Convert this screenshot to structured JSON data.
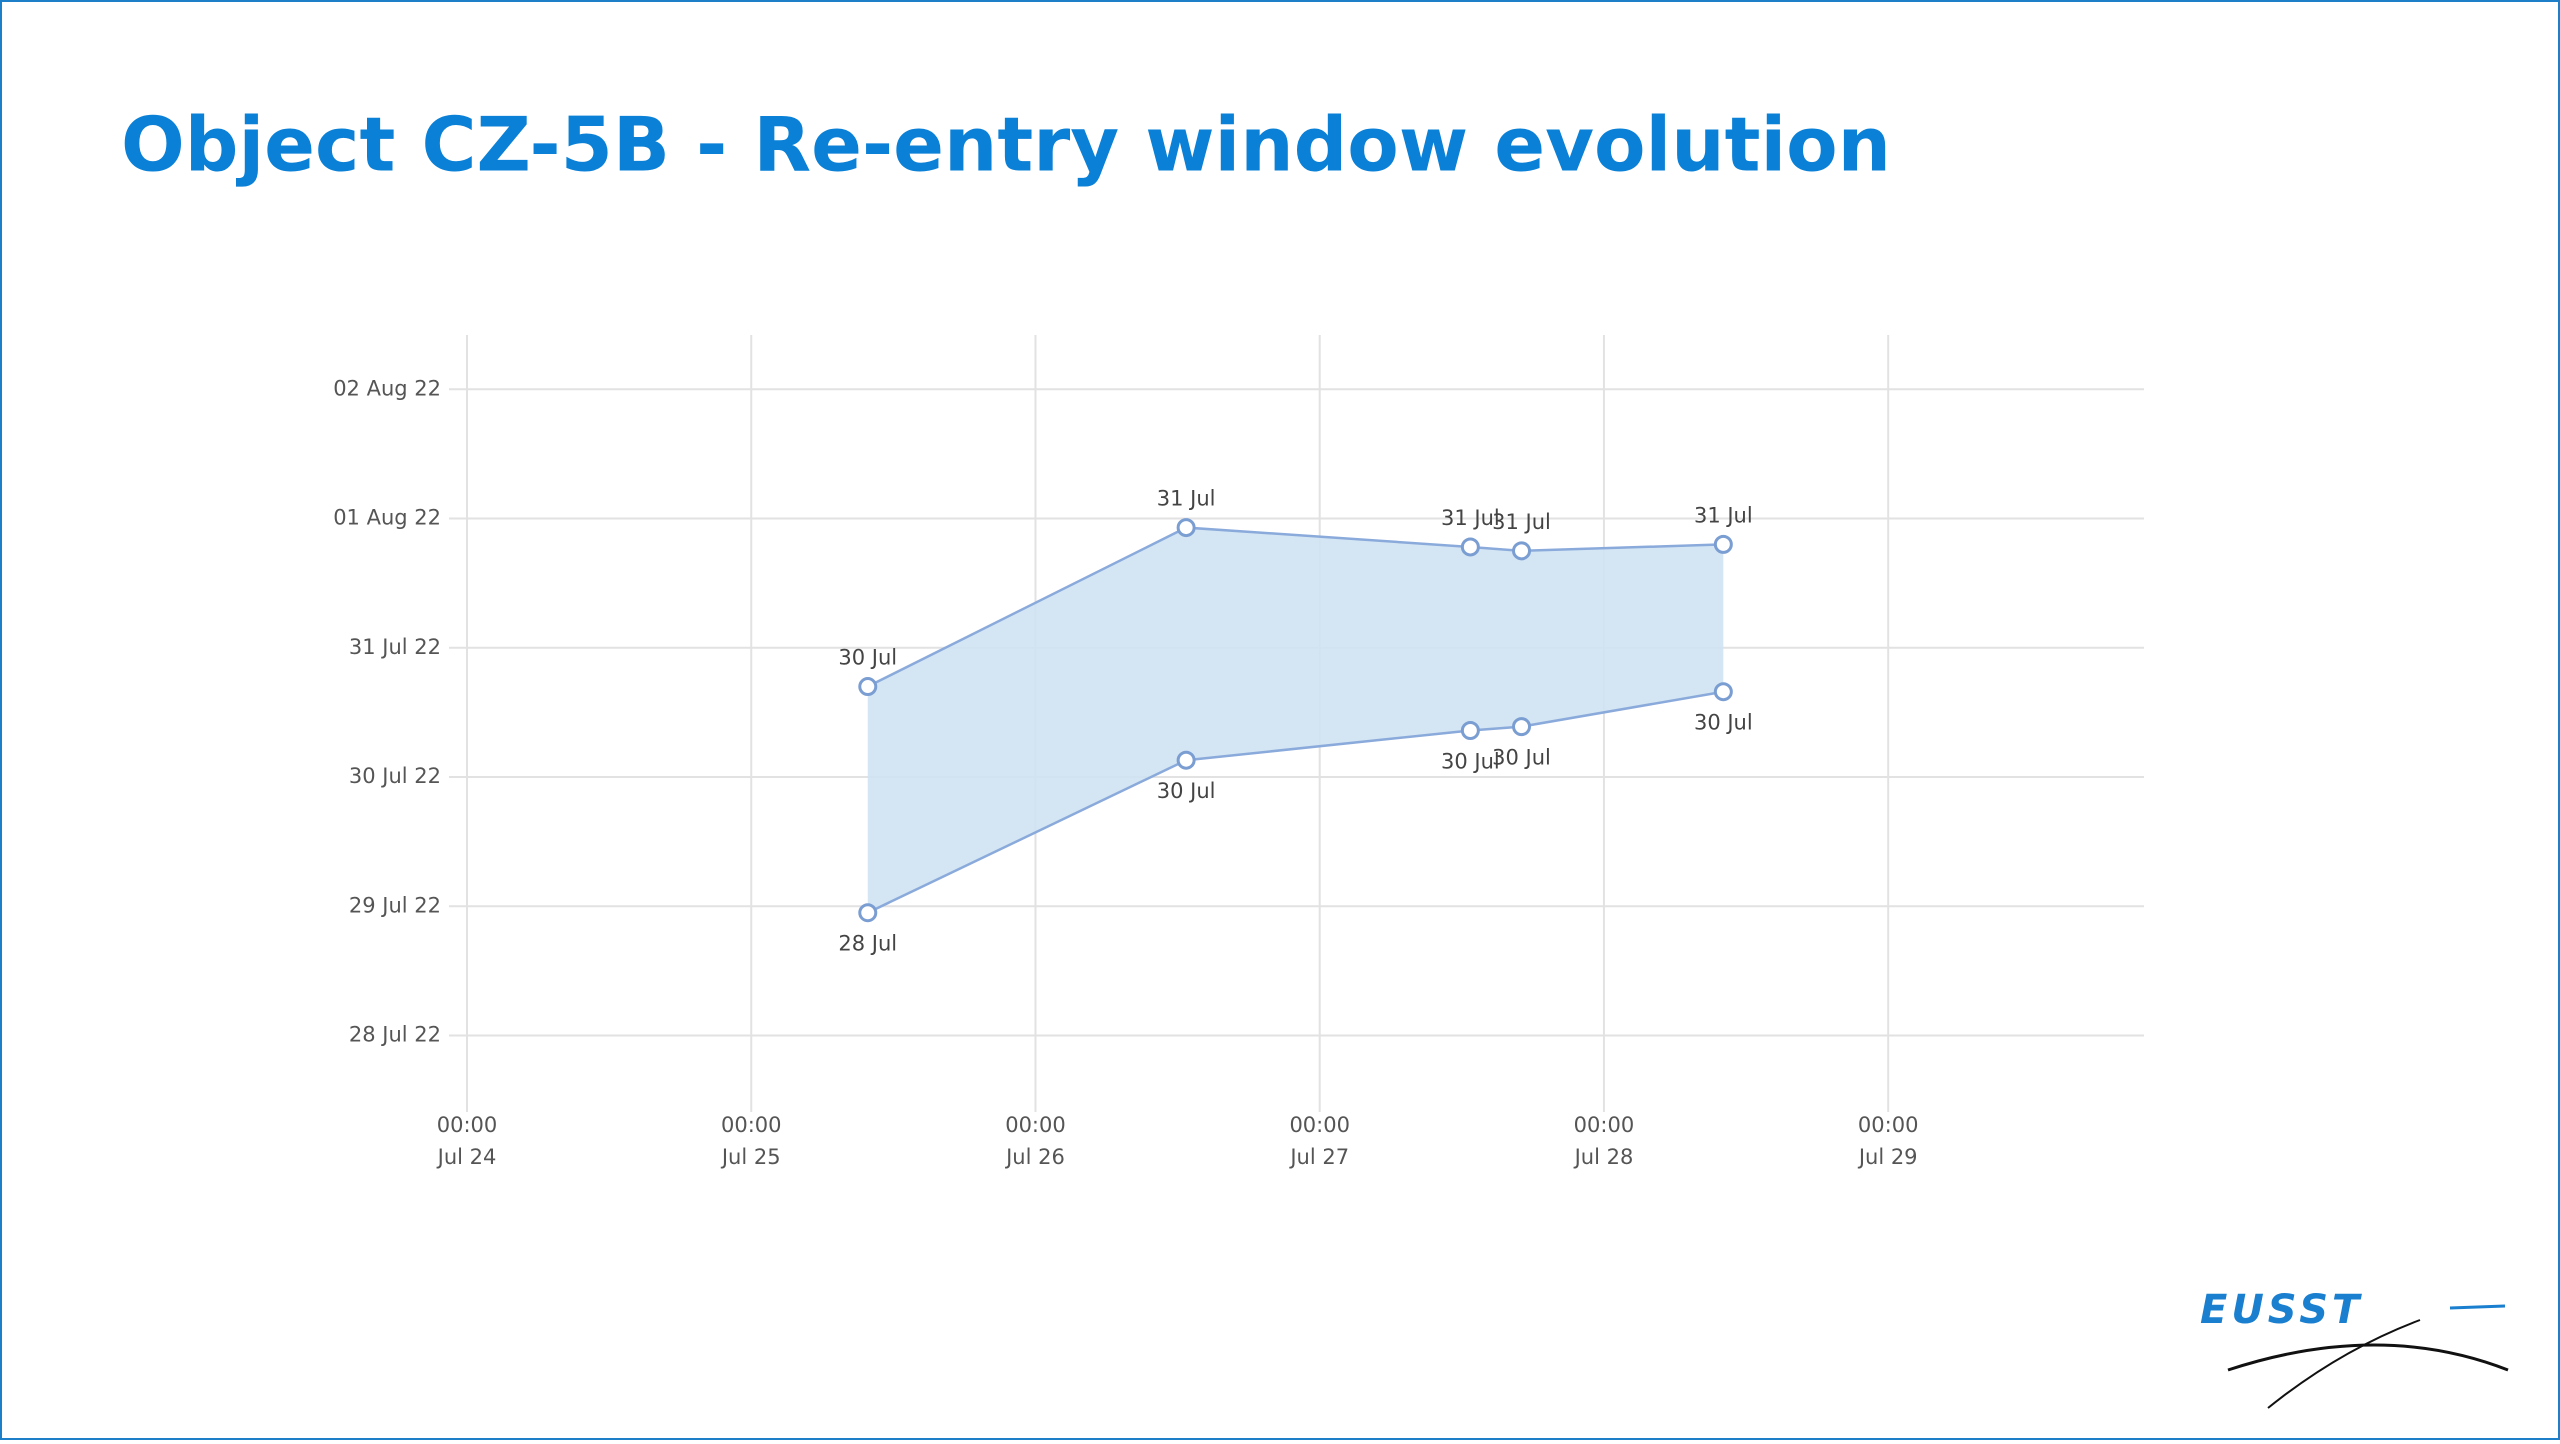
{
  "chart_data": {
    "type": "arearange",
    "title": "Object CZ-5B - Re-entry window evolution",
    "x": [
      25.41,
      26.53,
      27.53,
      27.71,
      28.42
    ],
    "series": [
      {
        "values": [
          30.7,
          31.93,
          31.78,
          31.75,
          31.8
        ],
        "value_labels": [
          "30 Jul",
          "31 Jul",
          "31 Jul",
          "31 Jul",
          "31 Jul"
        ]
      },
      {
        "values": [
          28.95,
          30.13,
          30.36,
          30.39,
          30.66
        ],
        "value_labels": [
          "28 Jul",
          "30 Jul",
          "30 Jul",
          "30 Jul",
          "30 Jul"
        ]
      }
    ],
    "line_color": "#8aaadb",
    "fill_color": "#cfe3f3",
    "xlim": [
      24,
      29.9
    ],
    "xticks": [
      {
        "value": 24,
        "label": [
          "00:00",
          "Jul 24"
        ]
      },
      {
        "value": 25,
        "label": [
          "00:00",
          "Jul 25"
        ]
      },
      {
        "value": 26,
        "label": [
          "00:00",
          "Jul 26"
        ]
      },
      {
        "value": 27,
        "label": [
          "00:00",
          "Jul 27"
        ]
      },
      {
        "value": 28,
        "label": [
          "00:00",
          "Jul 28"
        ]
      },
      {
        "value": 29,
        "label": [
          "00:00",
          "Jul 29"
        ]
      }
    ],
    "ylim": [
      27.47,
      33.42
    ],
    "yticks": [
      {
        "value": 28,
        "label": "28 Jul 22"
      },
      {
        "value": 29,
        "label": "29 Jul 22"
      },
      {
        "value": 30,
        "label": "30 Jul 22"
      },
      {
        "value": 31,
        "label": "31 Jul 22"
      },
      {
        "value": 32,
        "label": "01 Aug 22"
      },
      {
        "value": 33,
        "label": "02 Aug 22"
      }
    ],
    "grid": true
  },
  "logo": "EUSST"
}
